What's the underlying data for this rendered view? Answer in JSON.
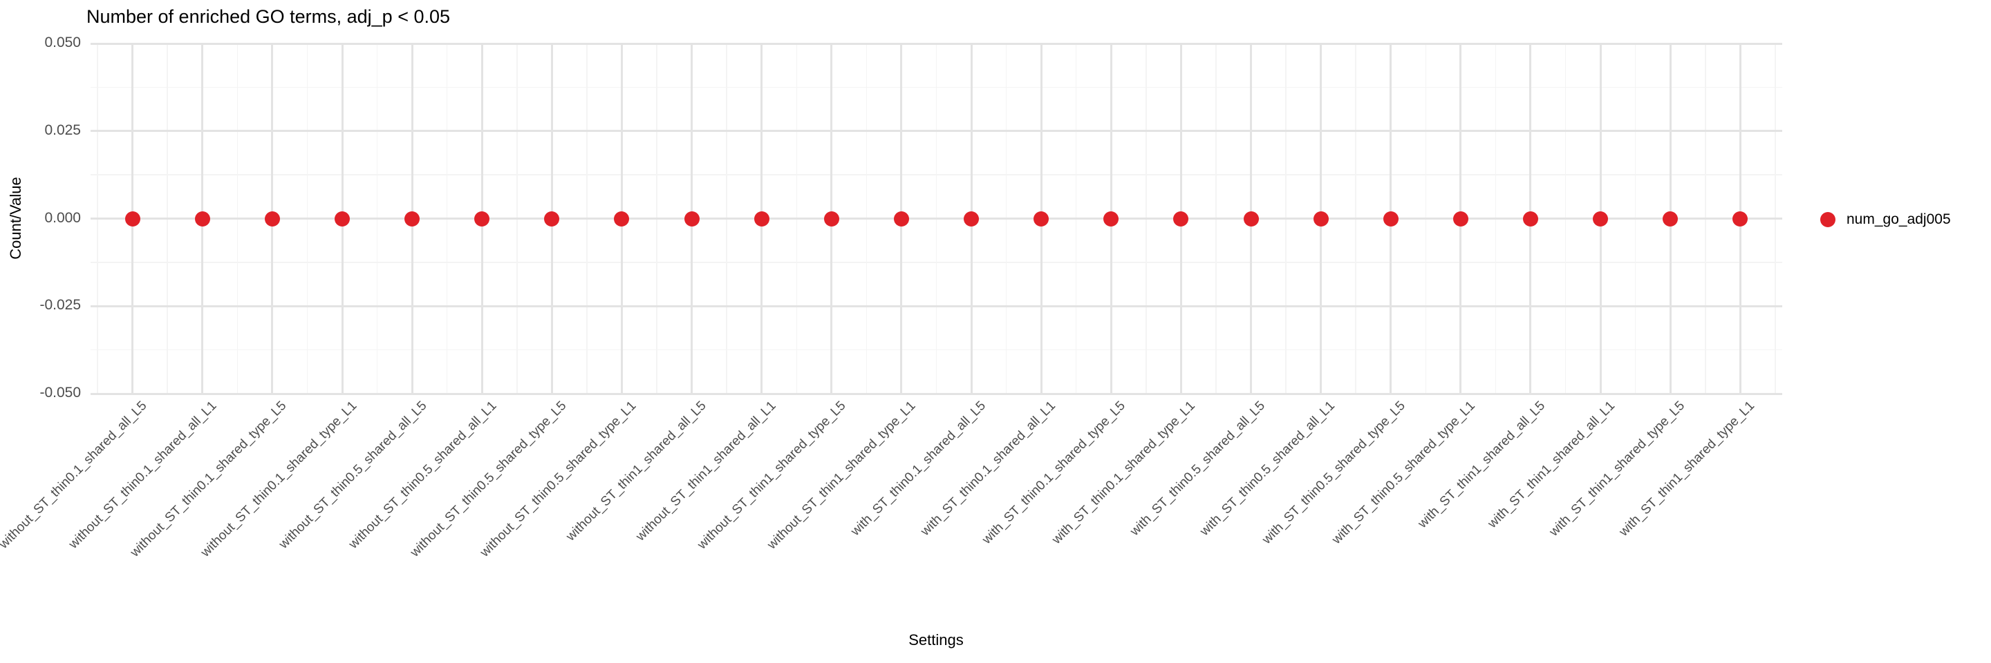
{
  "legend": {
    "label": "num_go_adj005",
    "color": "#e02128"
  },
  "colors": {
    "point": "#e02128",
    "grid_major": "#e3e3e3",
    "grid_minor": "#f4f4f4",
    "tick_text": "#4d4d4d",
    "text": "#000000",
    "background": "#ffffff"
  },
  "chart_data": {
    "type": "scatter",
    "title": "Number of enriched GO terms, adj_p < 0.05",
    "xlabel": "Settings",
    "ylabel": "Count/Value",
    "categories": [
      "without_ST_thin0.1_shared_all_L5",
      "without_ST_thin0.1_shared_all_L1",
      "without_ST_thin0.1_shared_type_L5",
      "without_ST_thin0.1_shared_type_L1",
      "without_ST_thin0.5_shared_all_L5",
      "without_ST_thin0.5_shared_all_L1",
      "without_ST_thin0.5_shared_type_L5",
      "without_ST_thin0.5_shared_type_L1",
      "without_ST_thin1_shared_all_L5",
      "without_ST_thin1_shared_all_L1",
      "without_ST_thin1_shared_type_L5",
      "without_ST_thin1_shared_type_L1",
      "with_ST_thin0.1_shared_all_L5",
      "with_ST_thin0.1_shared_all_L1",
      "with_ST_thin0.1_shared_type_L5",
      "with_ST_thin0.1_shared_type_L1",
      "with_ST_thin0.5_shared_all_L5",
      "with_ST_thin0.5_shared_all_L1",
      "with_ST_thin0.5_shared_type_L5",
      "with_ST_thin0.5_shared_type_L1",
      "with_ST_thin1_shared_all_L5",
      "with_ST_thin1_shared_all_L1",
      "with_ST_thin1_shared_type_L5",
      "with_ST_thin1_shared_type_L1"
    ],
    "series": [
      {
        "name": "num_go_adj005",
        "color": "#e02128",
        "values": [
          0,
          0,
          0,
          0,
          0,
          0,
          0,
          0,
          0,
          0,
          0,
          0,
          0,
          0,
          0,
          0,
          0,
          0,
          0,
          0,
          0,
          0,
          0,
          0
        ]
      }
    ],
    "ylim": [
      -0.05,
      0.05
    ],
    "yticks": {
      "values": [
        0.05,
        0.025,
        0,
        -0.025,
        -0.05
      ],
      "labels": [
        "0.050",
        "0.025",
        "0.000",
        "-0.025",
        "-0.050"
      ]
    },
    "grid": true,
    "legend_position": "right"
  }
}
